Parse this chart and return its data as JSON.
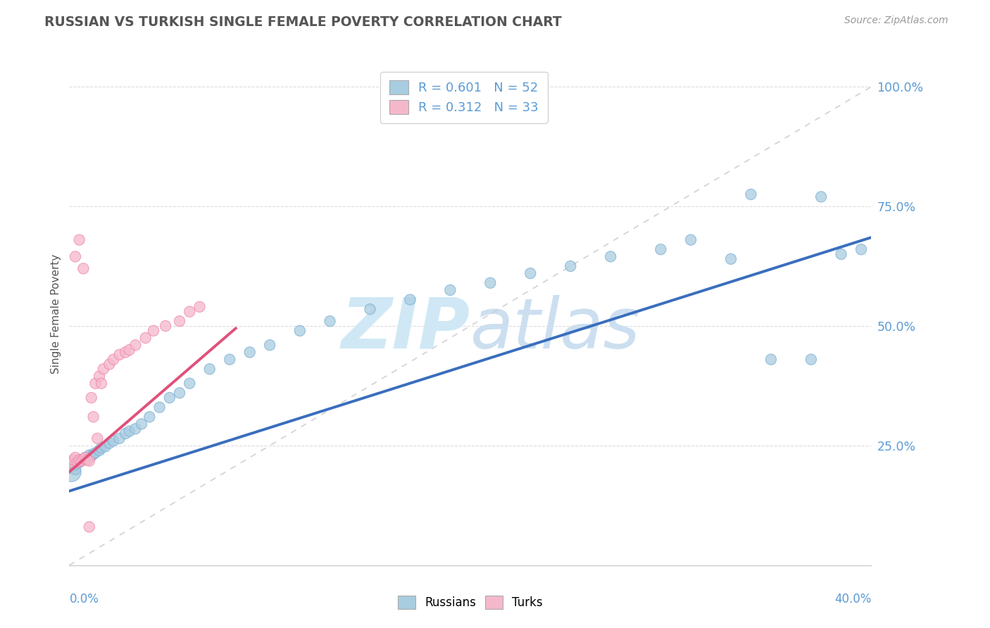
{
  "title": "RUSSIAN VS TURKISH SINGLE FEMALE POVERTY CORRELATION CHART",
  "source": "Source: ZipAtlas.com",
  "ylabel": "Single Female Poverty",
  "legend_blue_label": "R = 0.601   N = 52",
  "legend_pink_label": "R = 0.312   N = 33",
  "legend_russians": "Russians",
  "legend_turks": "Turks",
  "blue_color": "#a8cce0",
  "pink_color": "#f5b8cb",
  "blue_edge_color": "#7bafd4",
  "pink_edge_color": "#ee88aa",
  "blue_line_color": "#3a6ebd",
  "pink_line_color": "#e0507a",
  "diag_line_color": "#cccccc",
  "title_color": "#555555",
  "source_color": "#999999",
  "axis_label_color": "#5b9bd5",
  "watermark_color": "#d6eaf8",
  "xlim": [
    0.0,
    0.4
  ],
  "ylim": [
    0.0,
    1.05
  ],
  "ytick_positions": [
    0.0,
    0.25,
    0.5,
    0.75,
    1.0
  ],
  "ytick_labels": [
    "",
    "25.0%",
    "50.0%",
    "75.0%",
    "100.0%"
  ],
  "blue_line_x": [
    0.0,
    0.4
  ],
  "blue_line_y": [
    0.155,
    0.685
  ],
  "pink_line_x": [
    0.0,
    0.083
  ],
  "pink_line_y": [
    0.195,
    0.495
  ],
  "russians_x": [
    0.001,
    0.002,
    0.003,
    0.003,
    0.004,
    0.005,
    0.006,
    0.006,
    0.007,
    0.008,
    0.009,
    0.01,
    0.011,
    0.012,
    0.013,
    0.015,
    0.016,
    0.018,
    0.02,
    0.022,
    0.025,
    0.028,
    0.03,
    0.033,
    0.036,
    0.04,
    0.045,
    0.05,
    0.055,
    0.06,
    0.07,
    0.08,
    0.09,
    0.1,
    0.115,
    0.13,
    0.15,
    0.17,
    0.19,
    0.21,
    0.23,
    0.25,
    0.27,
    0.295,
    0.31,
    0.33,
    0.35,
    0.37,
    0.385,
    0.395,
    0.375,
    0.34
  ],
  "russians_y": [
    0.195,
    0.205,
    0.2,
    0.21,
    0.215,
    0.215,
    0.22,
    0.218,
    0.222,
    0.225,
    0.22,
    0.23,
    0.228,
    0.232,
    0.235,
    0.24,
    0.245,
    0.248,
    0.255,
    0.26,
    0.265,
    0.275,
    0.28,
    0.285,
    0.295,
    0.31,
    0.33,
    0.35,
    0.36,
    0.38,
    0.41,
    0.43,
    0.445,
    0.46,
    0.49,
    0.51,
    0.535,
    0.555,
    0.575,
    0.59,
    0.61,
    0.625,
    0.645,
    0.66,
    0.68,
    0.64,
    0.43,
    0.43,
    0.65,
    0.66,
    0.77,
    0.775
  ],
  "russians_sizes": [
    400,
    120,
    120,
    120,
    120,
    120,
    120,
    120,
    120,
    120,
    120,
    120,
    120,
    120,
    120,
    120,
    120,
    120,
    120,
    120,
    120,
    120,
    120,
    120,
    120,
    120,
    120,
    120,
    120,
    120,
    120,
    120,
    120,
    120,
    120,
    120,
    120,
    120,
    120,
    120,
    120,
    120,
    120,
    120,
    120,
    120,
    120,
    120,
    120,
    120,
    120,
    120
  ],
  "turks_x": [
    0.001,
    0.002,
    0.003,
    0.004,
    0.005,
    0.006,
    0.007,
    0.008,
    0.009,
    0.01,
    0.011,
    0.013,
    0.015,
    0.017,
    0.02,
    0.022,
    0.025,
    0.028,
    0.03,
    0.033,
    0.038,
    0.042,
    0.048,
    0.055,
    0.06,
    0.065,
    0.01,
    0.014,
    0.012,
    0.016,
    0.005,
    0.003,
    0.007
  ],
  "turks_y": [
    0.215,
    0.22,
    0.225,
    0.215,
    0.22,
    0.218,
    0.222,
    0.225,
    0.22,
    0.218,
    0.35,
    0.38,
    0.395,
    0.41,
    0.42,
    0.43,
    0.44,
    0.445,
    0.45,
    0.46,
    0.475,
    0.49,
    0.5,
    0.51,
    0.53,
    0.54,
    0.08,
    0.265,
    0.31,
    0.38,
    0.68,
    0.645,
    0.62
  ],
  "turks_sizes": [
    120,
    120,
    120,
    120,
    120,
    120,
    120,
    120,
    120,
    120,
    120,
    120,
    120,
    120,
    120,
    120,
    120,
    120,
    120,
    120,
    120,
    120,
    120,
    120,
    120,
    120,
    120,
    120,
    120,
    120,
    120,
    120,
    120
  ]
}
